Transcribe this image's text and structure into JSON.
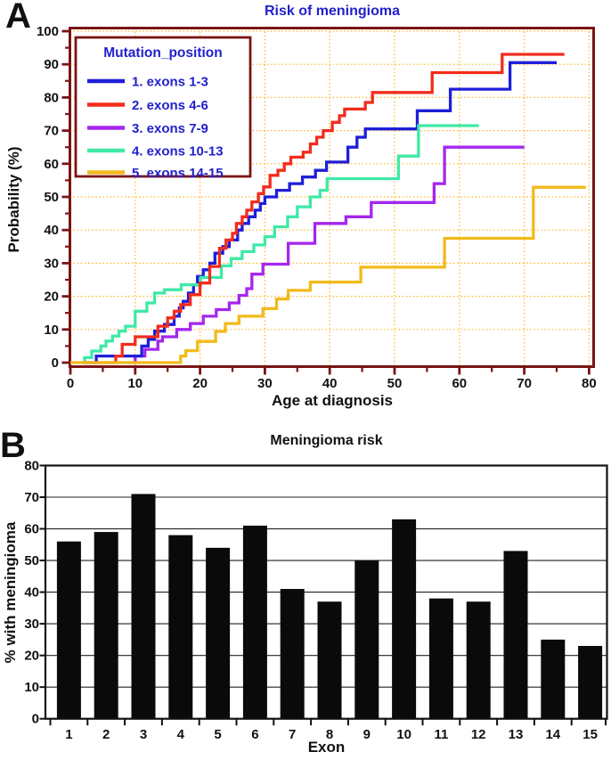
{
  "style_colors": {
    "frame_maroon": "#7a1414",
    "grid_orange": "#ffb422",
    "text_blue": "#2121cd",
    "axis_black": "#111111",
    "bar_black": "#0a0a0a",
    "plot_background": "#ffffff"
  },
  "chart_data": [
    {
      "type": "line",
      "panel_label": "A",
      "title": "Risk of meningioma",
      "xlabel": "Age at diagnosis",
      "ylabel": "Probability (%)",
      "xlim": [
        0,
        80
      ],
      "ylim": [
        0,
        100
      ],
      "xticks": [
        0,
        10,
        20,
        30,
        40,
        50,
        60,
        70,
        80
      ],
      "yticks": [
        0,
        10,
        20,
        30,
        40,
        50,
        60,
        70,
        80,
        90,
        100
      ],
      "minor_tick_step": 5,
      "grid": true,
      "legend_position": "upper-left",
      "legend_title": "Mutation_position",
      "series": [
        {
          "name": "1. exons 1-3",
          "color": "#1e1ed8",
          "steps": [
            [
              2,
              0
            ],
            [
              4,
              2
            ],
            [
              11,
              5
            ],
            [
              12,
              7
            ],
            [
              13,
              9.5
            ],
            [
              14.5,
              11.5
            ],
            [
              16,
              14
            ],
            [
              16.8,
              16.5
            ],
            [
              17.4,
              18.5
            ],
            [
              18.2,
              21
            ],
            [
              19,
              23.5
            ],
            [
              19.6,
              26
            ],
            [
              20.5,
              28
            ],
            [
              21.5,
              30
            ],
            [
              22.3,
              33
            ],
            [
              23.5,
              35
            ],
            [
              24.5,
              37
            ],
            [
              25.8,
              40
            ],
            [
              26.5,
              42
            ],
            [
              27.5,
              44
            ],
            [
              28.5,
              46
            ],
            [
              29.3,
              48
            ],
            [
              30,
              50
            ],
            [
              31.8,
              52
            ],
            [
              33.8,
              54
            ],
            [
              35.8,
              56
            ],
            [
              37.8,
              58
            ],
            [
              39.5,
              60.5
            ],
            [
              42.8,
              65
            ],
            [
              44.2,
              68
            ],
            [
              45.5,
              70.5
            ],
            [
              53.5,
              76
            ],
            [
              58.6,
              82.5
            ],
            [
              67.8,
              90.5
            ],
            [
              75,
              90.5
            ]
          ]
        },
        {
          "name": "2. exons 4-6",
          "color": "#f22c1c",
          "steps": [
            [
              2,
              0
            ],
            [
              7,
              2
            ],
            [
              8,
              5.5
            ],
            [
              10,
              7.8
            ],
            [
              13.5,
              11
            ],
            [
              15,
              13.5
            ],
            [
              16,
              15.5
            ],
            [
              17,
              17.5
            ],
            [
              18.5,
              20.5
            ],
            [
              20,
              24
            ],
            [
              21.5,
              29
            ],
            [
              23,
              34.5
            ],
            [
              24,
              37
            ],
            [
              25,
              39
            ],
            [
              25.6,
              42
            ],
            [
              26.5,
              44
            ],
            [
              27.2,
              46
            ],
            [
              28,
              48.5
            ],
            [
              29,
              51
            ],
            [
              29.8,
              53
            ],
            [
              30.8,
              56.5
            ],
            [
              32,
              58
            ],
            [
              33,
              60
            ],
            [
              34,
              62
            ],
            [
              35.9,
              63.5
            ],
            [
              37,
              66
            ],
            [
              38,
              68
            ],
            [
              39,
              70
            ],
            [
              40.4,
              72.5
            ],
            [
              41.5,
              74.5
            ],
            [
              42.3,
              76.5
            ],
            [
              45.5,
              78.5
            ],
            [
              46.6,
              81.5
            ],
            [
              55.8,
              87.5
            ],
            [
              66.6,
              93
            ],
            [
              76.2,
              93
            ]
          ]
        },
        {
          "name": "3. exons 7-9",
          "color": "#a526ee",
          "steps": [
            [
              9,
              0
            ],
            [
              10,
              2
            ],
            [
              11.5,
              4
            ],
            [
              13.5,
              6.5
            ],
            [
              14.2,
              7.8
            ],
            [
              16.4,
              10
            ],
            [
              18.5,
              11.8
            ],
            [
              20.5,
              14
            ],
            [
              22.5,
              16
            ],
            [
              24.5,
              18
            ],
            [
              26,
              20.3
            ],
            [
              27.2,
              22.3
            ],
            [
              28,
              26.7
            ],
            [
              29.7,
              29.7
            ],
            [
              33.6,
              36
            ],
            [
              37.7,
              42
            ],
            [
              42.5,
              44
            ],
            [
              46.4,
              48.3
            ],
            [
              56.1,
              54
            ],
            [
              57.7,
              65
            ],
            [
              70,
              65
            ]
          ]
        },
        {
          "name": "4. exons 10-13",
          "color": "#3fe9a6",
          "steps": [
            [
              1.7,
              0
            ],
            [
              2.2,
              1.5
            ],
            [
              3.3,
              3.5
            ],
            [
              4.7,
              5
            ],
            [
              5.5,
              6.5
            ],
            [
              6.5,
              8
            ],
            [
              7.5,
              9.5
            ],
            [
              8.5,
              11
            ],
            [
              10,
              15.5
            ],
            [
              11.8,
              18
            ],
            [
              13,
              21
            ],
            [
              14.5,
              22
            ],
            [
              17.1,
              23.5
            ],
            [
              20.1,
              25.7
            ],
            [
              23.3,
              29.2
            ],
            [
              24.8,
              31.4
            ],
            [
              26.5,
              33.5
            ],
            [
              28.3,
              35.5
            ],
            [
              30,
              38
            ],
            [
              31.5,
              41
            ],
            [
              33.5,
              44
            ],
            [
              35,
              47
            ],
            [
              37,
              50
            ],
            [
              38.5,
              52
            ],
            [
              39.6,
              55.5
            ],
            [
              50.6,
              62.3
            ],
            [
              53.7,
              71.5
            ],
            [
              63,
              71.5
            ]
          ]
        },
        {
          "name": "5. exons 14-15",
          "color": "#f2ba1a",
          "steps": [
            [
              0,
              0
            ],
            [
              17,
              2
            ],
            [
              17.8,
              3.6
            ],
            [
              19.6,
              6.4
            ],
            [
              22.4,
              9.4
            ],
            [
              23.9,
              11.8
            ],
            [
              26,
              14
            ],
            [
              29.7,
              16.3
            ],
            [
              31.8,
              19.2
            ],
            [
              33.6,
              21.8
            ],
            [
              37,
              24.3
            ],
            [
              44.8,
              28.8
            ],
            [
              57.7,
              37.5
            ],
            [
              71.4,
              52.9
            ],
            [
              79.5,
              52.9
            ]
          ]
        }
      ]
    },
    {
      "type": "bar",
      "panel_label": "B",
      "title": "Meningioma risk",
      "xlabel": "Exon",
      "ylabel": "% with meningioma",
      "ylim": [
        0,
        80
      ],
      "yticks": [
        0,
        10,
        20,
        30,
        40,
        50,
        60,
        70,
        80
      ],
      "grid": true,
      "categories": [
        "1",
        "2",
        "3",
        "4",
        "5",
        "6",
        "7",
        "8",
        "9",
        "10",
        "11",
        "12",
        "13",
        "14",
        "15"
      ],
      "values": [
        56,
        59,
        71,
        58,
        54,
        61,
        41,
        37,
        50,
        63,
        38,
        37,
        53,
        25,
        23
      ]
    }
  ]
}
